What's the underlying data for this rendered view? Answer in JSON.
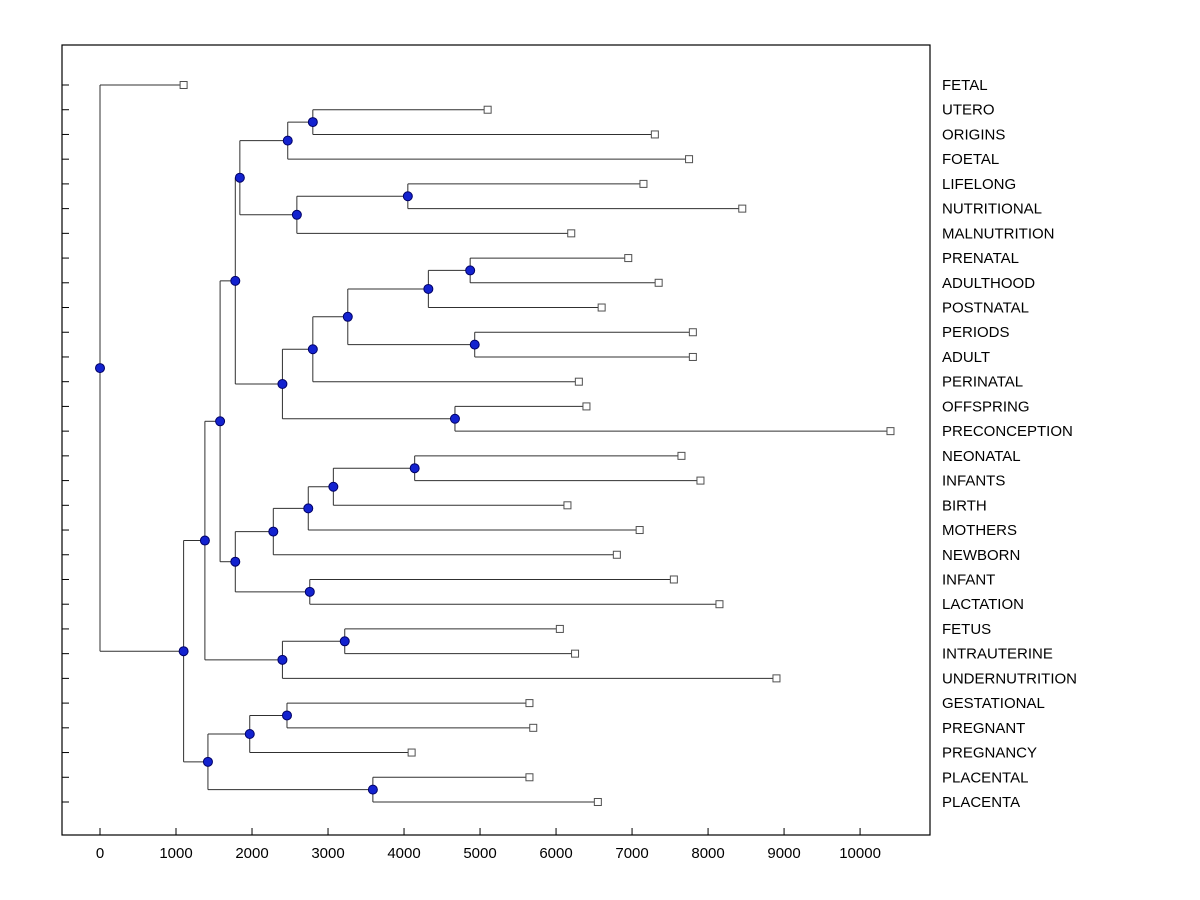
{
  "figure": {
    "background": "#ffffff",
    "axis_color": "#000000",
    "tree_line_color": "#303030",
    "node_marker": {
      "shape": "circle",
      "fill": "#1322cf",
      "edge": "#000066",
      "radius": 4.5
    },
    "leaf_marker": {
      "shape": "square",
      "fill": "#ffffff",
      "edge": "#505050",
      "size": 7
    },
    "label_font_size": 15,
    "tick_font_size": 15
  },
  "chart_data": {
    "type": "dendrogram",
    "orientation": "left-to-right",
    "title": "",
    "xlabel": "",
    "ylabel": "",
    "grid": false,
    "xlim": [
      -500,
      10920
    ],
    "x_ticks": [
      0,
      1000,
      2000,
      3000,
      4000,
      5000,
      6000,
      7000,
      8000,
      9000,
      10000
    ],
    "leaves": [
      {
        "label": "FETAL",
        "distance": 1100
      },
      {
        "label": "UTERO",
        "distance": 5100
      },
      {
        "label": "ORIGINS",
        "distance": 7300
      },
      {
        "label": "FOETAL",
        "distance": 7750
      },
      {
        "label": "LIFELONG",
        "distance": 7150
      },
      {
        "label": "NUTRITIONAL",
        "distance": 8450
      },
      {
        "label": "MALNUTRITION",
        "distance": 6200
      },
      {
        "label": "PRENATAL",
        "distance": 6950
      },
      {
        "label": "ADULTHOOD",
        "distance": 7350
      },
      {
        "label": "POSTNATAL",
        "distance": 6600
      },
      {
        "label": "PERIODS",
        "distance": 7800
      },
      {
        "label": "ADULT",
        "distance": 7800
      },
      {
        "label": "PERINATAL",
        "distance": 6300
      },
      {
        "label": "OFFSPRING",
        "distance": 6400
      },
      {
        "label": "PRECONCEPTION",
        "distance": 10400
      },
      {
        "label": "NEONATAL",
        "distance": 7650
      },
      {
        "label": "INFANTS",
        "distance": 7900
      },
      {
        "label": "BIRTH",
        "distance": 6150
      },
      {
        "label": "MOTHERS",
        "distance": 7100
      },
      {
        "label": "NEWBORN",
        "distance": 6800
      },
      {
        "label": "INFANT",
        "distance": 7550
      },
      {
        "label": "LACTATION",
        "distance": 8150
      },
      {
        "label": "FETUS",
        "distance": 6050
      },
      {
        "label": "INTRAUTERINE",
        "distance": 6250
      },
      {
        "label": "UNDERNUTRITION",
        "distance": 8900
      },
      {
        "label": "GESTATIONAL",
        "distance": 5650
      },
      {
        "label": "PREGNANT",
        "distance": 5700
      },
      {
        "label": "PREGNANCY",
        "distance": 4100
      },
      {
        "label": "PLACENTAL",
        "distance": 5650
      },
      {
        "label": "PLACENTA",
        "distance": 6550
      }
    ],
    "merges": [
      {
        "id": "M0",
        "children": [
          "L1",
          "L2"
        ],
        "distance": 2800
      },
      {
        "id": "M1",
        "children": [
          "M0",
          "L3"
        ],
        "distance": 2470
      },
      {
        "id": "M2",
        "children": [
          "L4",
          "L5"
        ],
        "distance": 4050
      },
      {
        "id": "M3",
        "children": [
          "M2",
          "L6"
        ],
        "distance": 2590
      },
      {
        "id": "M4",
        "children": [
          "M1",
          "M3"
        ],
        "distance": 1840
      },
      {
        "id": "M5",
        "children": [
          "L7",
          "L8"
        ],
        "distance": 4870
      },
      {
        "id": "M6",
        "children": [
          "M5",
          "L9"
        ],
        "distance": 4320
      },
      {
        "id": "M7",
        "children": [
          "L10",
          "L11"
        ],
        "distance": 4930
      },
      {
        "id": "M8",
        "children": [
          "M6",
          "M7"
        ],
        "distance": 3260
      },
      {
        "id": "M9",
        "children": [
          "M8",
          "L12"
        ],
        "distance": 2800
      },
      {
        "id": "M10",
        "children": [
          "L13",
          "L14"
        ],
        "distance": 4670
      },
      {
        "id": "M11",
        "children": [
          "M9",
          "M10"
        ],
        "distance": 2400
      },
      {
        "id": "M12",
        "children": [
          "M4",
          "M11"
        ],
        "distance": 1780
      },
      {
        "id": "M13",
        "children": [
          "L15",
          "L16"
        ],
        "distance": 4140
      },
      {
        "id": "M14",
        "children": [
          "M13",
          "L17"
        ],
        "distance": 3070
      },
      {
        "id": "M15",
        "children": [
          "M14",
          "L18"
        ],
        "distance": 2740
      },
      {
        "id": "M16",
        "children": [
          "M15",
          "L19"
        ],
        "distance": 2280
      },
      {
        "id": "M17",
        "children": [
          "L20",
          "L21"
        ],
        "distance": 2760
      },
      {
        "id": "M18",
        "children": [
          "M16",
          "M17"
        ],
        "distance": 1780
      },
      {
        "id": "M19",
        "children": [
          "M12",
          "M18"
        ],
        "distance": 1580
      },
      {
        "id": "M20",
        "children": [
          "L22",
          "L23"
        ],
        "distance": 3220
      },
      {
        "id": "M21",
        "children": [
          "M20",
          "L24"
        ],
        "distance": 2400
      },
      {
        "id": "M22",
        "children": [
          "M19",
          "M21"
        ],
        "distance": 1380
      },
      {
        "id": "M23",
        "children": [
          "L25",
          "L26"
        ],
        "distance": 2460
      },
      {
        "id": "M24",
        "children": [
          "M23",
          "L27"
        ],
        "distance": 1970
      },
      {
        "id": "M25",
        "children": [
          "L28",
          "L29"
        ],
        "distance": 3590
      },
      {
        "id": "M26",
        "children": [
          "M24",
          "M25"
        ],
        "distance": 1420
      },
      {
        "id": "M27",
        "children": [
          "M22",
          "M26"
        ],
        "distance": 1100
      },
      {
        "id": "M28",
        "children": [
          "L0",
          "M27"
        ],
        "distance": 0
      }
    ]
  }
}
